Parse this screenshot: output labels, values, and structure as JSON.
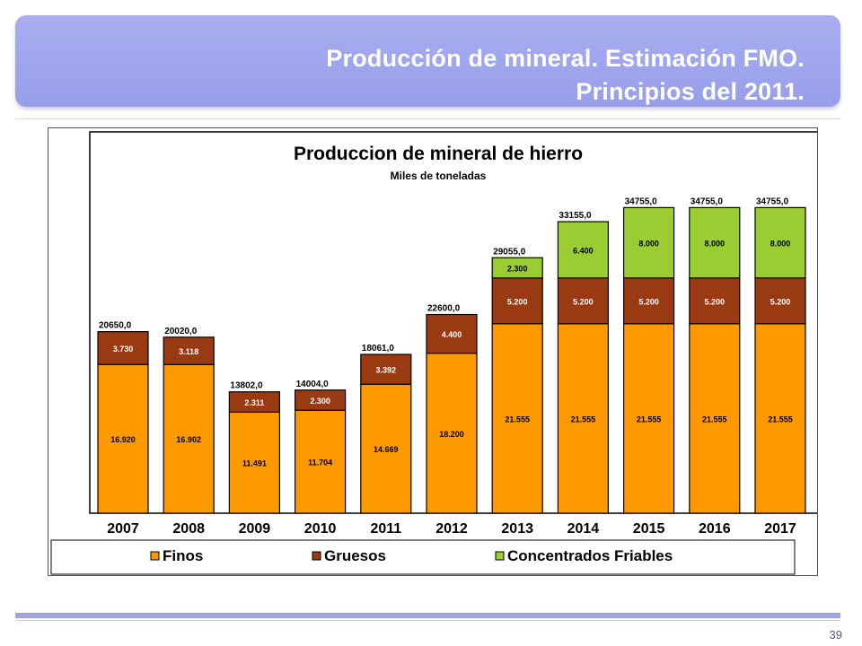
{
  "slide": {
    "title_line1": "Producción de mineral. Estimación FMO.",
    "title_line2": "Principios del 2011.",
    "page_number": "39"
  },
  "colors": {
    "banner": "#979ee9",
    "finos": "#ff9900",
    "gruesos": "#9a3a12",
    "concentrados": "#9acd32"
  },
  "chart_data": {
    "type": "bar",
    "stacked": true,
    "title": "Produccion de mineral de hierro",
    "subtitle": "Miles de toneladas",
    "categories": [
      "2007",
      "2008",
      "2009",
      "2010",
      "2011",
      "2012",
      "2013",
      "2014",
      "2015",
      "2016",
      "2017"
    ],
    "series": [
      {
        "name": "Finos",
        "color": "#ff9900",
        "values": [
          16920,
          16902,
          11491,
          11704,
          14669,
          18200,
          21555,
          21555,
          21555,
          21555,
          21555
        ],
        "labels": [
          "16.920",
          "16.902",
          "11.491",
          "11.704",
          "14.669",
          "18.200",
          "21.555",
          "21.555",
          "21.555",
          "21.555",
          "21.555"
        ]
      },
      {
        "name": "Gruesos",
        "color": "#9a3a12",
        "values": [
          3730,
          3118,
          2311,
          2300,
          3392,
          4400,
          5200,
          5200,
          5200,
          5200,
          5200
        ],
        "labels": [
          "3.730",
          "3.118",
          "2.311",
          "2.300",
          "3.392",
          "4.400",
          "5.200",
          "5.200",
          "5.200",
          "5.200",
          "5.200"
        ]
      },
      {
        "name": "Concentrados Friables",
        "color": "#9acd32",
        "values": [
          0,
          0,
          0,
          0,
          0,
          0,
          2300,
          6400,
          8000,
          8000,
          8000
        ],
        "labels": [
          "",
          "",
          "",
          "",
          "",
          "",
          "2.300",
          "6.400",
          "8.000",
          "8.000",
          "8.000"
        ]
      }
    ],
    "totals": [
      "20650,0",
      "20020,0",
      "13802,0",
      "14004,0",
      "18061,0",
      "22600,0",
      "29055,0",
      "33155,0",
      "34755,0",
      "34755,0",
      "34755,0"
    ],
    "ylim": [
      0,
      40000
    ],
    "legend_position": "bottom",
    "grid": false
  }
}
